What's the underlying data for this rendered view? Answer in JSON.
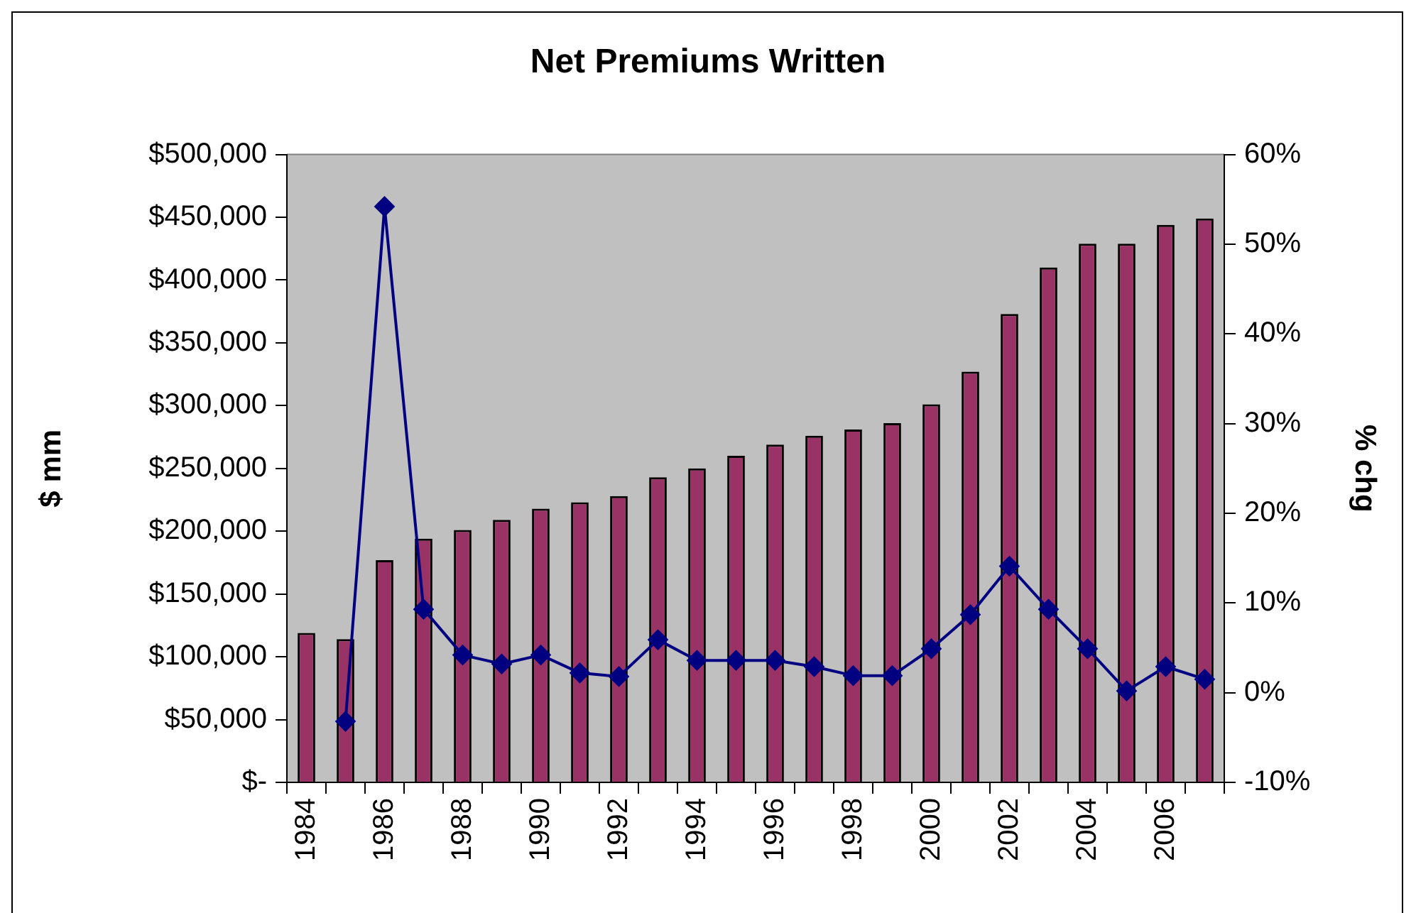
{
  "chart_data": {
    "type": "bar",
    "title": "Net Premiums Written",
    "ylabel": "$ mm",
    "y2label": "% chg",
    "categories": [
      "1984",
      null,
      "1986",
      null,
      "1988",
      null,
      "1990",
      null,
      "1992",
      null,
      "1994",
      null,
      "1996",
      null,
      "1998",
      null,
      "2000",
      null,
      "2002",
      null,
      "2004",
      null,
      "2006",
      null
    ],
    "series": [
      {
        "color": "#993366",
        "values": [
          119000,
          114000,
          177000,
          194000,
          201000,
          209000,
          218000,
          223000,
          228000,
          243000,
          250000,
          260000,
          269000,
          276000,
          281000,
          286000,
          301000,
          327000,
          373000,
          410000,
          429000,
          429000,
          444000,
          449000
        ]
      },
      {
        "type": "line",
        "axis": "y2",
        "color": "#000080",
        "marker": "diamond",
        "line_style": "solid",
        "values": [
          null,
          -3.2,
          54.2,
          9.3,
          4.2,
          3.2,
          4.2,
          2.2,
          1.8,
          5.9,
          3.6,
          3.6,
          3.6,
          2.9,
          1.9,
          1.9,
          4.9,
          8.7,
          14.1,
          9.3,
          4.9,
          0.2,
          2.9,
          1.5
        ]
      }
    ],
    "ylim": [
      0,
      500000
    ],
    "yticks": [
      {
        "value": 0,
        "label": "$-"
      },
      {
        "value": 50000,
        "label": "$50,000"
      },
      {
        "value": 100000,
        "label": "$100,000"
      },
      {
        "value": 150000,
        "label": "$150,000"
      },
      {
        "value": 200000,
        "label": "$200,000"
      },
      {
        "value": 250000,
        "label": "$250,000"
      },
      {
        "value": 300000,
        "label": "$300,000"
      },
      {
        "value": 350000,
        "label": "$350,000"
      },
      {
        "value": 400000,
        "label": "$400,000"
      },
      {
        "value": 450000,
        "label": "$450,000"
      },
      {
        "value": 500000,
        "label": "$500,000"
      }
    ],
    "y2lim": [
      -10,
      60
    ],
    "y2ticks": [
      {
        "value": -10,
        "label": "-10%"
      },
      {
        "value": 0,
        "label": "0%"
      },
      {
        "value": 10,
        "label": "10%"
      },
      {
        "value": 20,
        "label": "20%"
      },
      {
        "value": 30,
        "label": "30%"
      },
      {
        "value": 40,
        "label": "40%"
      },
      {
        "value": 50,
        "label": "50%"
      },
      {
        "value": 60,
        "label": "60%"
      }
    ],
    "grid": false,
    "legend": false
  }
}
